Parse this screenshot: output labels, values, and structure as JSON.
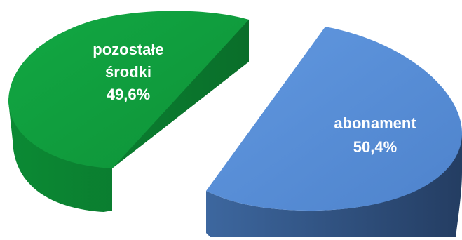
{
  "chart_data": {
    "type": "pie",
    "title": "",
    "style": "3d-exploded",
    "legend": "none",
    "slices": [
      {
        "label_lines": [
          "pozostałe",
          "środki"
        ],
        "value_text": "49,6%",
        "value": 49.6,
        "color_top": "#11A03F",
        "color_side": "#0B7A2E"
      },
      {
        "label_lines": [
          "abonament"
        ],
        "value_text": "50,4%",
        "value": 50.4,
        "color_top": "#5A90D8",
        "color_side": "#2F4E7C"
      }
    ]
  }
}
